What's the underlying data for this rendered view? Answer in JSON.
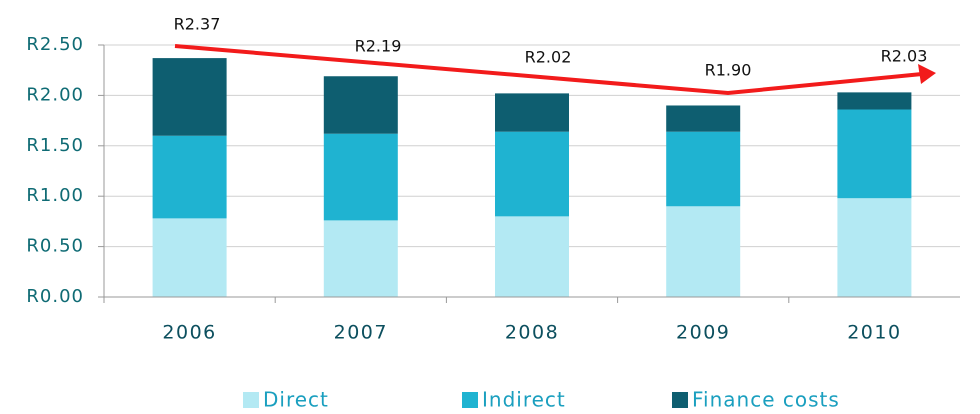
{
  "chart_data": {
    "type": "stacked_bar",
    "categories": [
      "2006",
      "2007",
      "2008",
      "2009",
      "2010"
    ],
    "series": [
      {
        "name": "Direct",
        "color": "#b3e9f3",
        "values": [
          0.78,
          0.76,
          0.8,
          0.9,
          0.98
        ]
      },
      {
        "name": "Indirect",
        "color": "#1fb3d1",
        "values": [
          0.82,
          0.86,
          0.84,
          0.74,
          0.88
        ]
      },
      {
        "name": "Finance costs",
        "color": "#0e5e70",
        "values": [
          0.77,
          0.57,
          0.38,
          0.26,
          0.17
        ]
      }
    ],
    "total_labels": [
      "R2.37",
      "R2.19",
      "R2.02",
      "R1.90",
      "R2.03"
    ],
    "ylim": [
      0,
      2.5
    ],
    "yticks": [
      {
        "value": 0,
        "label": "R0.00"
      },
      {
        "value": 0.5,
        "label": "R0.50"
      },
      {
        "value": 1,
        "label": "R1.00"
      },
      {
        "value": 1.5,
        "label": "R1.50"
      },
      {
        "value": 2,
        "label": "R2.00"
      },
      {
        "value": 2.5,
        "label": "R2.50"
      }
    ],
    "grid": true,
    "legend": "bottom"
  }
}
